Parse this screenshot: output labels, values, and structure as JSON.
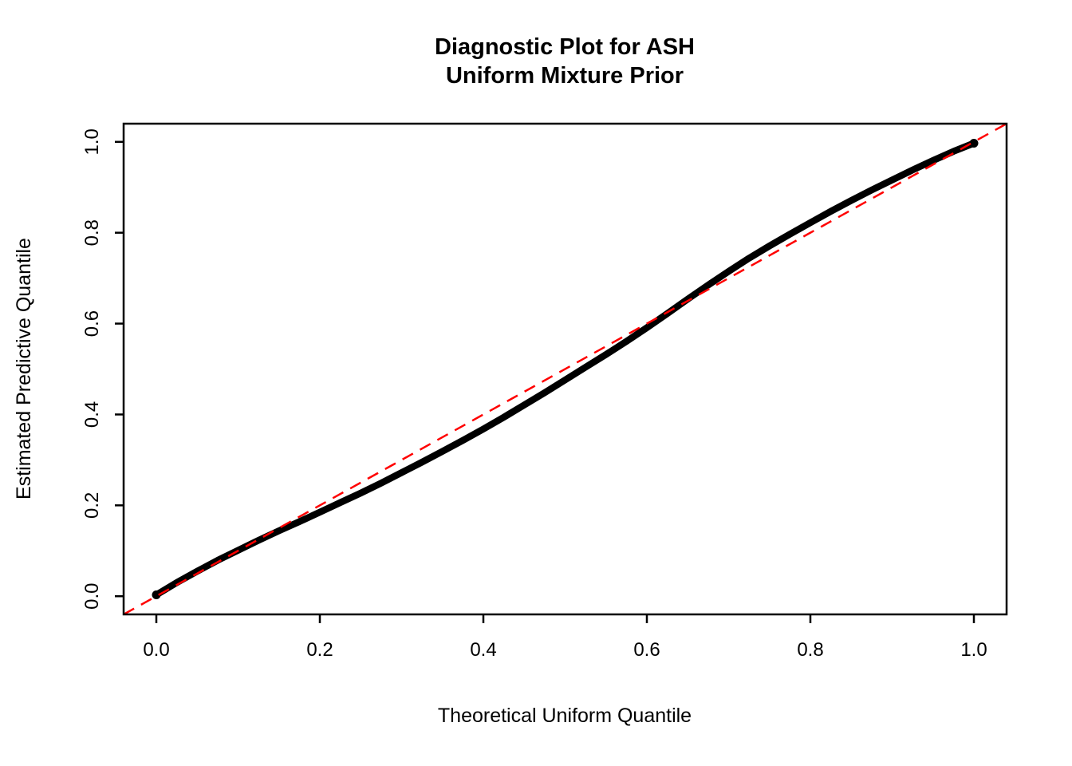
{
  "figure": {
    "background_color": "#ffffff",
    "frame_color": "#000000"
  },
  "chart_data": {
    "type": "scatter",
    "title": "Diagnostic Plot for ASH\nUniform Mixture Prior",
    "title_lines": [
      "Diagnostic Plot for ASH",
      "Uniform Mixture Prior"
    ],
    "xlabel": "Theoretical Uniform Quantile",
    "ylabel": "Estimated Predictive Quantile",
    "xlim": [
      -0.04,
      1.04
    ],
    "ylim": [
      -0.04,
      1.04
    ],
    "x_ticks": [
      0.0,
      0.2,
      0.4,
      0.6,
      0.8,
      1.0
    ],
    "y_ticks": [
      0.0,
      0.2,
      0.4,
      0.6,
      0.8,
      1.0
    ],
    "x_tick_labels": [
      "0.0",
      "0.2",
      "0.4",
      "0.6",
      "0.8",
      "1.0"
    ],
    "y_tick_labels": [
      "0.0",
      "0.2",
      "0.4",
      "0.6",
      "0.8",
      "1.0"
    ],
    "grid": false,
    "legend": false,
    "series": [
      {
        "name": "estimated-predictive-quantiles",
        "type": "scatter-curve",
        "color": "#000000",
        "points": [
          [
            0.0,
            0.003
          ],
          [
            0.025,
            0.03
          ],
          [
            0.05,
            0.055
          ],
          [
            0.075,
            0.079
          ],
          [
            0.1,
            0.101
          ],
          [
            0.125,
            0.123
          ],
          [
            0.15,
            0.144
          ],
          [
            0.175,
            0.164
          ],
          [
            0.2,
            0.185
          ],
          [
            0.225,
            0.206
          ],
          [
            0.25,
            0.227
          ],
          [
            0.275,
            0.249
          ],
          [
            0.3,
            0.272
          ],
          [
            0.325,
            0.295
          ],
          [
            0.35,
            0.319
          ],
          [
            0.375,
            0.343
          ],
          [
            0.4,
            0.368
          ],
          [
            0.425,
            0.394
          ],
          [
            0.45,
            0.421
          ],
          [
            0.475,
            0.448
          ],
          [
            0.5,
            0.476
          ],
          [
            0.525,
            0.504
          ],
          [
            0.55,
            0.532
          ],
          [
            0.575,
            0.561
          ],
          [
            0.6,
            0.591
          ],
          [
            0.625,
            0.622
          ],
          [
            0.65,
            0.654
          ],
          [
            0.675,
            0.685
          ],
          [
            0.7,
            0.715
          ],
          [
            0.725,
            0.744
          ],
          [
            0.75,
            0.771
          ],
          [
            0.775,
            0.797
          ],
          [
            0.8,
            0.822
          ],
          [
            0.825,
            0.847
          ],
          [
            0.85,
            0.871
          ],
          [
            0.875,
            0.894
          ],
          [
            0.9,
            0.916
          ],
          [
            0.925,
            0.938
          ],
          [
            0.95,
            0.959
          ],
          [
            0.975,
            0.979
          ],
          [
            1.0,
            0.997
          ]
        ]
      },
      {
        "name": "reference-line-y-equals-x",
        "type": "line",
        "style": "dashed",
        "color": "#FF0000",
        "points": [
          [
            -0.04,
            -0.04
          ],
          [
            1.04,
            1.04
          ]
        ]
      }
    ]
  }
}
